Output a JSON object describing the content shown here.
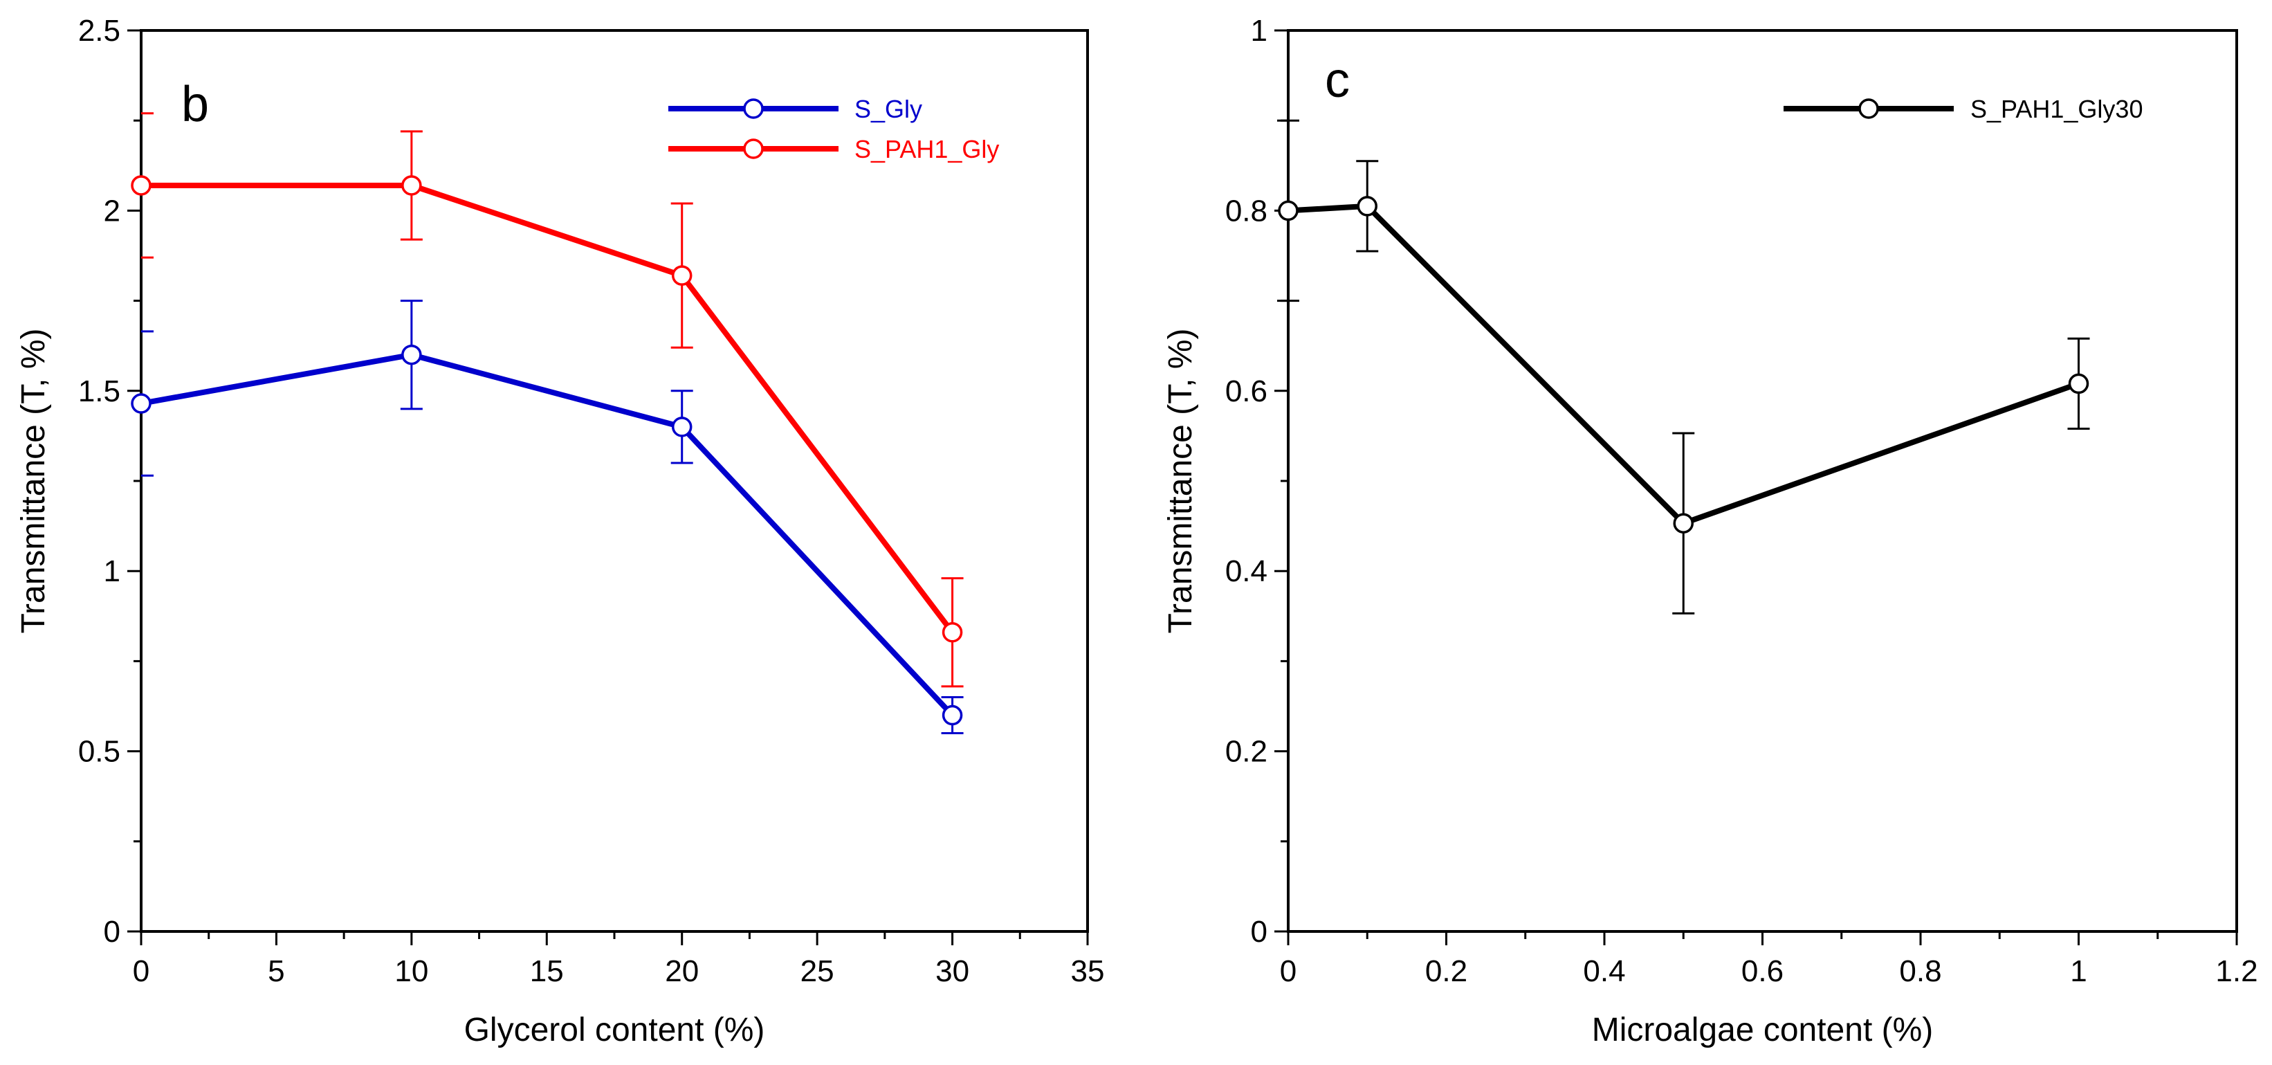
{
  "chart_data": [
    {
      "type": "line",
      "panel_label": "b",
      "xlabel": "Glycerol content (%)",
      "ylabel": "Transmittance (T, %)",
      "xlim": [
        0,
        35
      ],
      "ylim": [
        0,
        2.5
      ],
      "xticks": [
        0,
        5,
        10,
        15,
        20,
        25,
        30,
        35
      ],
      "yticks": [
        0,
        0.5,
        1,
        1.5,
        2,
        2.5
      ],
      "xtick_labels": [
        "0",
        "5",
        "10",
        "15",
        "20",
        "25",
        "30",
        "35"
      ],
      "ytick_labels": [
        "0",
        "0.5",
        "1",
        "1.5",
        "2",
        "2.5"
      ],
      "legend_position": "top-right",
      "series": [
        {
          "name": "S_Gly",
          "color": "#0000cc",
          "x": [
            0,
            10,
            20,
            30
          ],
          "values": [
            1.465,
            1.6,
            1.4,
            0.6
          ],
          "errors": [
            0.2,
            0.15,
            0.1,
            0.05
          ]
        },
        {
          "name": "S_PAH1_Gly",
          "color": "#ff0000",
          "x": [
            0,
            10,
            20,
            30
          ],
          "values": [
            2.07,
            2.07,
            1.82,
            0.83
          ],
          "errors": [
            0.2,
            0.15,
            0.2,
            0.15
          ]
        }
      ]
    },
    {
      "type": "line",
      "panel_label": "c",
      "xlabel": "Microalgae content (%)",
      "ylabel": "Transmittance (T, %)",
      "xlim": [
        0,
        1.2
      ],
      "ylim": [
        0,
        1
      ],
      "xticks": [
        0,
        0.2,
        0.4,
        0.6,
        0.8,
        1,
        1.2
      ],
      "yticks": [
        0,
        0.2,
        0.4,
        0.6,
        0.8,
        1
      ],
      "xtick_labels": [
        "0",
        "0.2",
        "0.4",
        "0.6",
        "0.8",
        "1",
        "1.2"
      ],
      "ytick_labels": [
        "0",
        "0.2",
        "0.4",
        "0.6",
        "0.8",
        "1"
      ],
      "legend_position": "top-right",
      "series": [
        {
          "name": "S_PAH1_Gly30",
          "color": "#000000",
          "x": [
            0,
            0.1,
            0.5,
            1
          ],
          "values": [
            0.8,
            0.805,
            0.453,
            0.608
          ],
          "errors": [
            0.1,
            0.05,
            0.1,
            0.05
          ]
        }
      ]
    }
  ]
}
